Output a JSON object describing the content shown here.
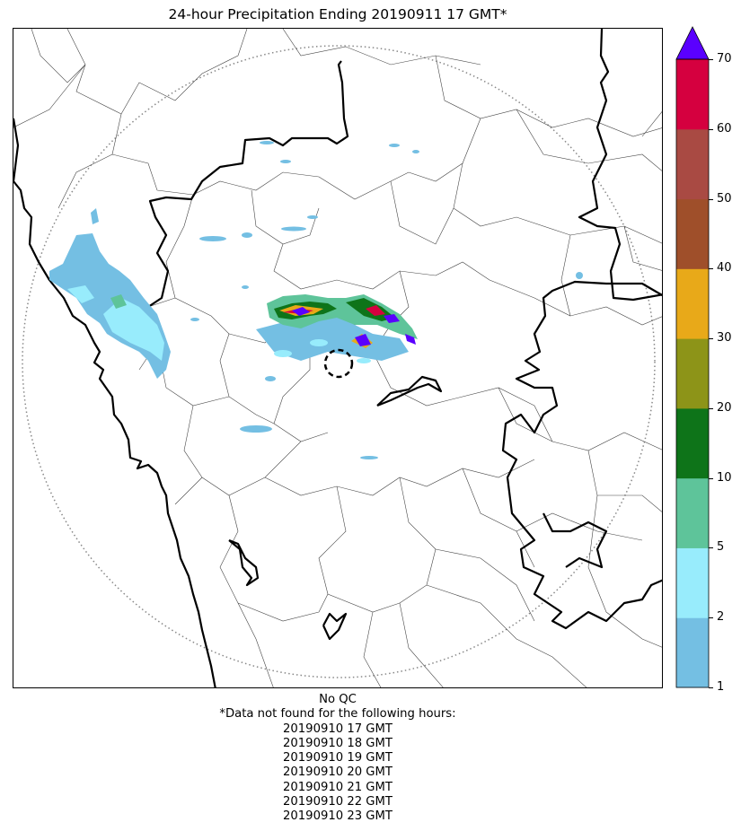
{
  "title": "24-hour Precipitation Ending 20190911 17 GMT*",
  "colorbar": {
    "levels": [
      {
        "value": "1",
        "color": "#74bfe3"
      },
      {
        "value": "2",
        "color": "#98ecfc"
      },
      {
        "value": "5",
        "color": "#5ec49a"
      },
      {
        "value": "10",
        "color": "#0e7419"
      },
      {
        "value": "20",
        "color": "#8d9418"
      },
      {
        "value": "30",
        "color": "#e8a919"
      },
      {
        "value": "40",
        "color": "#9f4f2a"
      },
      {
        "value": "50",
        "color": "#a94a43"
      },
      {
        "value": "60",
        "color": "#d5003f"
      },
      {
        "value": "70",
        "color": "#5a00ff"
      }
    ],
    "extend_max_color": "#5a00ff"
  },
  "footer": {
    "qc": "No QC",
    "missing_header": "*Data not found for the following hours:",
    "missing_hours": [
      "20190910 17 GMT",
      "20190910 18 GMT",
      "20190910 19 GMT",
      "20190910 20 GMT",
      "20190910 21 GMT",
      "20190910 22 GMT",
      "20190910 23 GMT"
    ]
  }
}
